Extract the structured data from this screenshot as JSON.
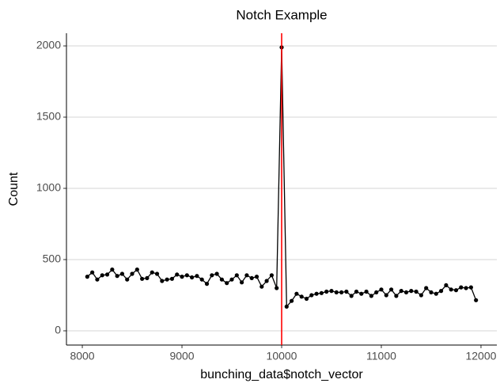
{
  "chart_data": {
    "type": "line",
    "title": "Notch Example",
    "x_label": "bunching_data$notch_vector",
    "y_label": "Count",
    "x": [
      8050,
      8100,
      8150,
      8200,
      8250,
      8300,
      8350,
      8400,
      8450,
      8500,
      8550,
      8600,
      8650,
      8700,
      8750,
      8800,
      8850,
      8900,
      8950,
      9000,
      9050,
      9100,
      9150,
      9200,
      9250,
      9300,
      9350,
      9400,
      9450,
      9500,
      9550,
      9600,
      9650,
      9700,
      9750,
      9800,
      9850,
      9900,
      9950,
      10000,
      10050,
      10100,
      10150,
      10200,
      10250,
      10300,
      10350,
      10400,
      10450,
      10500,
      10550,
      10600,
      10650,
      10700,
      10750,
      10800,
      10850,
      10900,
      10950,
      11000,
      11050,
      11100,
      11150,
      11200,
      11250,
      11300,
      11350,
      11400,
      11450,
      11500,
      11550,
      11600,
      11650,
      11700,
      11750,
      11800,
      11850,
      11900,
      11950
    ],
    "series": [
      {
        "color": "#000000",
        "values": [
          380,
          410,
          360,
          390,
          395,
          430,
          385,
          400,
          360,
          400,
          430,
          365,
          370,
          410,
          400,
          350,
          360,
          365,
          395,
          380,
          390,
          375,
          385,
          360,
          330,
          390,
          400,
          360,
          335,
          360,
          390,
          340,
          390,
          370,
          380,
          310,
          350,
          390,
          300,
          1990,
          170,
          210,
          260,
          240,
          225,
          250,
          260,
          265,
          275,
          280,
          270,
          270,
          275,
          245,
          275,
          260,
          275,
          245,
          270,
          290,
          250,
          290,
          245,
          280,
          270,
          280,
          275,
          250,
          300,
          270,
          260,
          280,
          320,
          290,
          285,
          305,
          300,
          305,
          215
        ]
      }
    ],
    "notch": {
      "x": 10000,
      "color": "#ff0000"
    },
    "xlim": [
      7841,
      12159
    ],
    "ylim": [
      -100,
      2089
    ],
    "xticks": [
      8000,
      9000,
      10000,
      11000,
      12000
    ],
    "yticks": [
      0,
      500,
      1000,
      1500,
      2000
    ],
    "grid": true
  }
}
